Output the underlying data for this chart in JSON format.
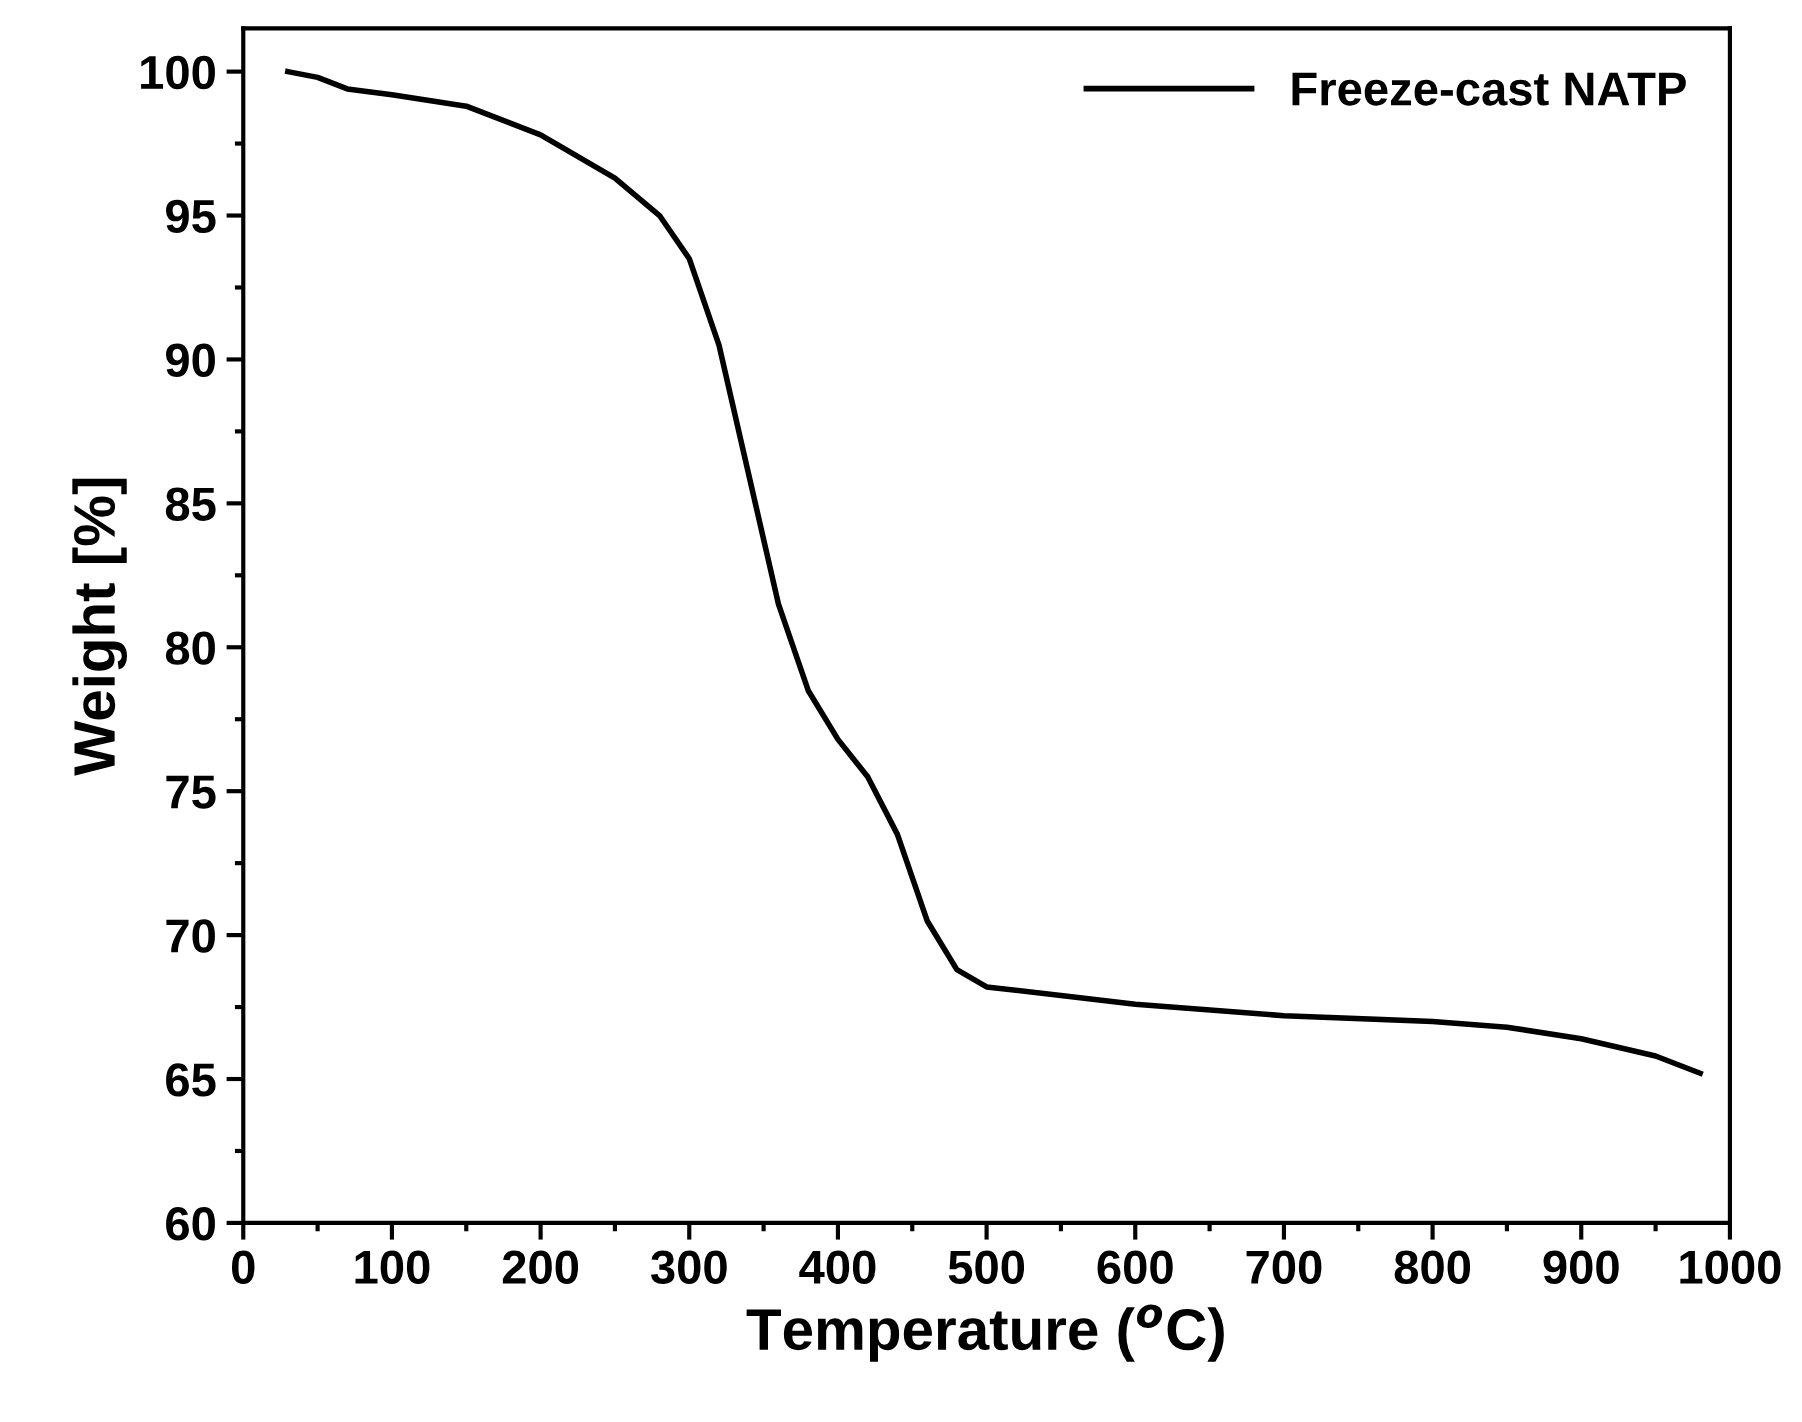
{
  "chart_data": {
    "type": "line",
    "xlabel": "Temperature ($^{o}$C)",
    "ylabel": "Weight [%]",
    "xlim": [
      0,
      1000
    ],
    "ylim": [
      60,
      101.5
    ],
    "xticks": [
      0,
      100,
      200,
      300,
      400,
      500,
      600,
      700,
      800,
      900,
      1000
    ],
    "yticks": [
      60,
      65,
      70,
      75,
      80,
      85,
      90,
      95,
      100
    ],
    "legend": "top right",
    "grid": false,
    "series": [
      {
        "name": "Freeze-cast NATP",
        "color": "#000000",
        "x": [
          30,
          50,
          70,
          100,
          150,
          200,
          250,
          280,
          300,
          320,
          340,
          360,
          380,
          400,
          420,
          440,
          460,
          480,
          500,
          550,
          600,
          700,
          800,
          850,
          900,
          950,
          980
        ],
        "values": [
          100,
          99.8,
          99.4,
          99.2,
          98.8,
          97.8,
          96.3,
          95,
          93.5,
          90.5,
          86,
          81.5,
          78.5,
          76.8,
          75.5,
          73.5,
          70.5,
          68.8,
          68.2,
          67.9,
          67.6,
          67.2,
          67.0,
          66.8,
          66.4,
          65.8,
          65.2
        ]
      }
    ]
  }
}
